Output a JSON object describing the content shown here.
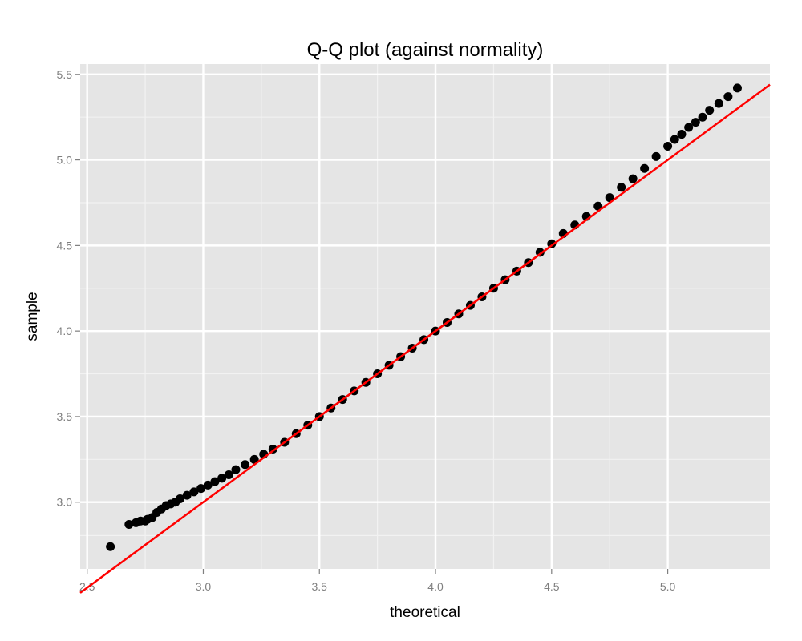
{
  "chart_data": {
    "type": "scatter",
    "title": "Q-Q plot (against normality)",
    "xlabel": "theoretical",
    "ylabel": "sample",
    "xlim": [
      2.47,
      5.44
    ],
    "ylim": [
      2.61,
      5.56
    ],
    "x_ticks": [
      "2.5",
      "3.0",
      "3.5",
      "4.0",
      "4.5",
      "5.0"
    ],
    "y_ticks": [
      "3.0",
      "3.5",
      "4.0",
      "4.5",
      "5.0",
      "5.5"
    ],
    "grid": true,
    "legend": "none",
    "series": [
      {
        "values": [
          [
            2.6,
            2.74
          ],
          [
            2.68,
            2.87
          ],
          [
            2.71,
            2.88
          ],
          [
            2.73,
            2.89
          ],
          [
            2.75,
            2.89
          ],
          [
            2.76,
            2.9
          ],
          [
            2.78,
            2.91
          ],
          [
            2.8,
            2.94
          ],
          [
            2.82,
            2.96
          ],
          [
            2.84,
            2.98
          ],
          [
            2.86,
            2.99
          ],
          [
            2.88,
            3.0
          ],
          [
            2.9,
            3.02
          ],
          [
            2.93,
            3.04
          ],
          [
            2.96,
            3.06
          ],
          [
            2.99,
            3.08
          ],
          [
            3.02,
            3.1
          ],
          [
            3.05,
            3.12
          ],
          [
            3.08,
            3.14
          ],
          [
            3.11,
            3.16
          ],
          [
            3.14,
            3.19
          ],
          [
            3.18,
            3.22
          ],
          [
            3.22,
            3.25
          ],
          [
            3.26,
            3.28
          ],
          [
            3.3,
            3.31
          ],
          [
            3.35,
            3.35
          ],
          [
            3.4,
            3.4
          ],
          [
            3.45,
            3.45
          ],
          [
            3.5,
            3.5
          ],
          [
            3.55,
            3.55
          ],
          [
            3.6,
            3.6
          ],
          [
            3.65,
            3.65
          ],
          [
            3.7,
            3.7
          ],
          [
            3.75,
            3.75
          ],
          [
            3.8,
            3.8
          ],
          [
            3.85,
            3.85
          ],
          [
            3.9,
            3.9
          ],
          [
            3.95,
            3.95
          ],
          [
            4.0,
            4.0
          ],
          [
            4.05,
            4.05
          ],
          [
            4.1,
            4.1
          ],
          [
            4.15,
            4.15
          ],
          [
            4.2,
            4.2
          ],
          [
            4.25,
            4.25
          ],
          [
            4.3,
            4.3
          ],
          [
            4.35,
            4.35
          ],
          [
            4.4,
            4.4
          ],
          [
            4.45,
            4.46
          ],
          [
            4.5,
            4.51
          ],
          [
            4.55,
            4.57
          ],
          [
            4.6,
            4.62
          ],
          [
            4.65,
            4.67
          ],
          [
            4.7,
            4.73
          ],
          [
            4.75,
            4.78
          ],
          [
            4.8,
            4.84
          ],
          [
            4.85,
            4.89
          ],
          [
            4.9,
            4.95
          ],
          [
            4.95,
            5.02
          ],
          [
            5.0,
            5.08
          ],
          [
            5.03,
            5.12
          ],
          [
            5.06,
            5.15
          ],
          [
            5.09,
            5.19
          ],
          [
            5.12,
            5.22
          ],
          [
            5.15,
            5.25
          ],
          [
            5.18,
            5.29
          ],
          [
            5.22,
            5.33
          ],
          [
            5.26,
            5.37
          ],
          [
            5.3,
            5.42
          ]
        ]
      }
    ],
    "reference_line": {
      "color": "#ff0000",
      "x": [
        2.47,
        5.44
      ],
      "y": [
        2.47,
        5.44
      ]
    }
  },
  "colors": {
    "panel_background": "#e5e5e5",
    "grid_major": "#ffffff",
    "grid_minor": "#f2f2f2",
    "points": "#000000",
    "reference_line": "#ff0000",
    "tick_labels": "#7f7f7f"
  }
}
